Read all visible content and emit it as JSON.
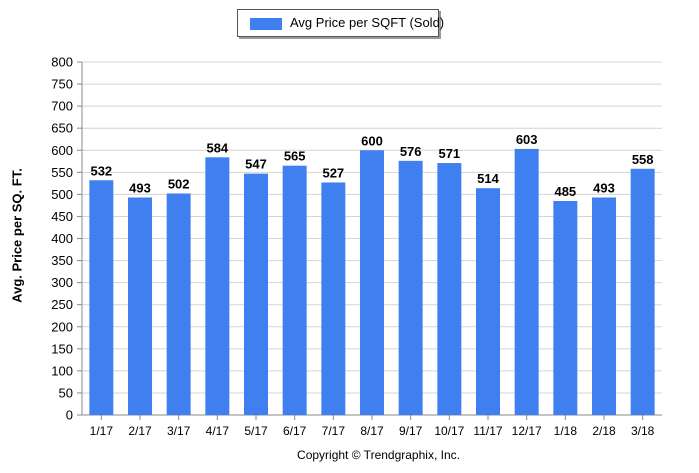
{
  "legend": {
    "label": "Avg Price per SQFT (Sold)"
  },
  "colors": {
    "bar": "#3f7ff0",
    "grid": "#d4d4d4",
    "axis": "#888888"
  },
  "footer": {
    "copyright": "Copyright © Trendgraphix, Inc."
  },
  "chart_data": {
    "type": "bar",
    "title": "",
    "xlabel": "",
    "ylabel": "Avg. Price per SQ. FT.",
    "categories": [
      "1/17",
      "2/17",
      "3/17",
      "4/17",
      "5/17",
      "6/17",
      "7/17",
      "8/17",
      "9/17",
      "10/17",
      "11/17",
      "12/17",
      "1/18",
      "2/18",
      "3/18"
    ],
    "series": [
      {
        "name": "Avg Price per SQFT (Sold)",
        "values": [
          532,
          493,
          502,
          584,
          547,
          565,
          527,
          600,
          576,
          571,
          514,
          603,
          485,
          493,
          558
        ]
      }
    ],
    "ylim": [
      0,
      800
    ],
    "yticks": [
      0,
      50,
      100,
      150,
      200,
      250,
      300,
      350,
      400,
      450,
      500,
      550,
      600,
      650,
      700,
      750,
      800
    ],
    "grid": true,
    "legend_position": "top-center",
    "data_labels": true
  }
}
